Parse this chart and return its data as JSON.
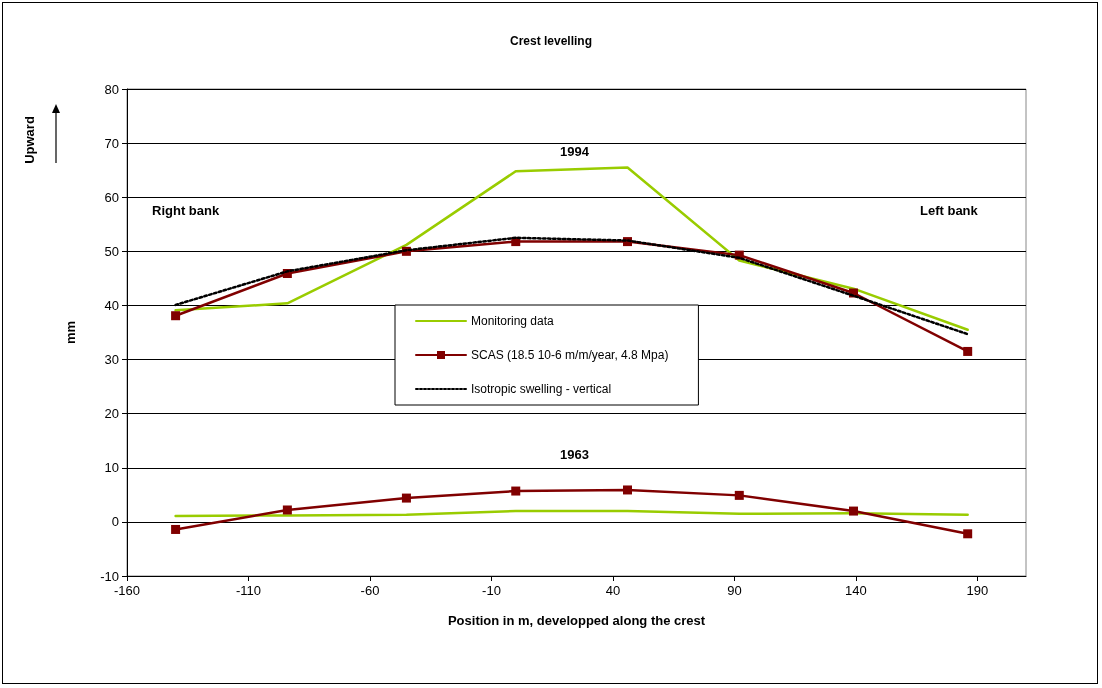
{
  "chart_data": {
    "type": "line",
    "title": "Crest levelling",
    "xlabel": "Position in m, developped along the crest",
    "ylabel": "mm",
    "xlim": [
      -160,
      210
    ],
    "xticks": [
      -160,
      -110,
      -60,
      -10,
      40,
      90,
      140,
      190
    ],
    "ylim": [
      -10,
      80
    ],
    "yticks": [
      -10,
      0,
      10,
      20,
      30,
      40,
      50,
      60,
      70,
      80
    ],
    "grid": "y",
    "legend": "center",
    "x": [
      -140,
      -94,
      -45,
      0,
      46,
      92,
      139,
      186
    ],
    "series": [
      {
        "name": "Monitoring data",
        "color": "#99cc00",
        "marker": "none",
        "line_style": "solid",
        "values": [
          39.1,
          40.4,
          51.2,
          64.8,
          65.5,
          48.3,
          43.1,
          35.5
        ]
      },
      {
        "name": "SCAS (18.5 10-6 m/m/year, 4.8 Mpa)",
        "color": "#800000",
        "marker": "square",
        "line_style": "solid",
        "values": [
          38.1,
          45.9,
          50.0,
          51.8,
          51.8,
          49.3,
          42.3,
          31.5
        ]
      },
      {
        "name": "Isotropic swelling - vertical",
        "color": "#000000",
        "marker": "none",
        "line_style": "dotted",
        "values": [
          40.1,
          46.3,
          50.2,
          52.5,
          52.0,
          48.8,
          41.8,
          34.7
        ]
      },
      {
        "color": "#99cc00",
        "marker": "none",
        "line_style": "solid",
        "values": [
          1.1,
          1.2,
          1.3,
          2.0,
          2.0,
          1.5,
          1.6,
          1.3
        ]
      },
      {
        "color": "#800000",
        "marker": "square",
        "line_style": "solid",
        "values": [
          -1.4,
          2.2,
          4.4,
          5.7,
          5.9,
          4.9,
          2.0,
          -2.2
        ]
      }
    ],
    "annotations": [
      "1994",
      "1963",
      "Right bank",
      "Left bank",
      "Upward"
    ]
  }
}
